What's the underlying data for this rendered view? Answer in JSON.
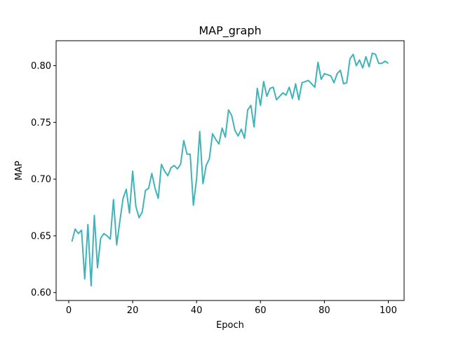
{
  "chart_data": {
    "type": "line",
    "title": "MAP_graph",
    "xlabel": "Epoch",
    "ylabel": "MAP",
    "xlim": [
      -3.95,
      104.95
    ],
    "ylim": [
      0.593,
      0.822
    ],
    "xticks": [
      0,
      20,
      40,
      60,
      80,
      100
    ],
    "yticks": [
      0.6,
      0.65,
      0.7,
      0.75,
      0.8
    ],
    "xtick_labels": [
      "0",
      "20",
      "40",
      "60",
      "80",
      "100"
    ],
    "ytick_labels": [
      "0.60",
      "0.65",
      "0.70",
      "0.75",
      "0.80"
    ],
    "grid": false,
    "legend": false,
    "series": [
      {
        "color": "#3fb4b8",
        "x": [
          1,
          2,
          3,
          4,
          5,
          6,
          7,
          8,
          9,
          10,
          11,
          12,
          13,
          14,
          15,
          16,
          17,
          18,
          19,
          20,
          21,
          22,
          23,
          24,
          25,
          26,
          27,
          28,
          29,
          30,
          31,
          32,
          33,
          34,
          35,
          36,
          37,
          38,
          39,
          40,
          41,
          42,
          43,
          44,
          45,
          46,
          47,
          48,
          49,
          50,
          51,
          52,
          53,
          54,
          55,
          56,
          57,
          58,
          59,
          60,
          61,
          62,
          63,
          64,
          65,
          66,
          67,
          68,
          69,
          70,
          71,
          72,
          73,
          74,
          75,
          76,
          77,
          78,
          79,
          80,
          81,
          82,
          83,
          84,
          85,
          86,
          87,
          88,
          89,
          90,
          91,
          92,
          93,
          94,
          95,
          96,
          97,
          98,
          99,
          100
        ],
        "y": [
          0.645,
          0.656,
          0.652,
          0.655,
          0.612,
          0.66,
          0.606,
          0.668,
          0.622,
          0.648,
          0.652,
          0.65,
          0.647,
          0.682,
          0.642,
          0.663,
          0.683,
          0.691,
          0.67,
          0.707,
          0.676,
          0.666,
          0.671,
          0.69,
          0.692,
          0.705,
          0.692,
          0.683,
          0.713,
          0.707,
          0.703,
          0.71,
          0.712,
          0.709,
          0.713,
          0.734,
          0.722,
          0.722,
          0.677,
          0.7,
          0.742,
          0.696,
          0.712,
          0.718,
          0.74,
          0.735,
          0.731,
          0.745,
          0.737,
          0.761,
          0.756,
          0.743,
          0.738,
          0.744,
          0.736,
          0.761,
          0.765,
          0.746,
          0.78,
          0.765,
          0.786,
          0.773,
          0.78,
          0.781,
          0.77,
          0.773,
          0.776,
          0.774,
          0.781,
          0.771,
          0.784,
          0.77,
          0.785,
          0.786,
          0.787,
          0.784,
          0.781,
          0.803,
          0.788,
          0.793,
          0.792,
          0.791,
          0.785,
          0.793,
          0.796,
          0.784,
          0.785,
          0.806,
          0.81,
          0.8,
          0.805,
          0.798,
          0.808,
          0.799,
          0.811,
          0.81,
          0.802,
          0.802,
          0.804,
          0.802
        ]
      }
    ]
  }
}
